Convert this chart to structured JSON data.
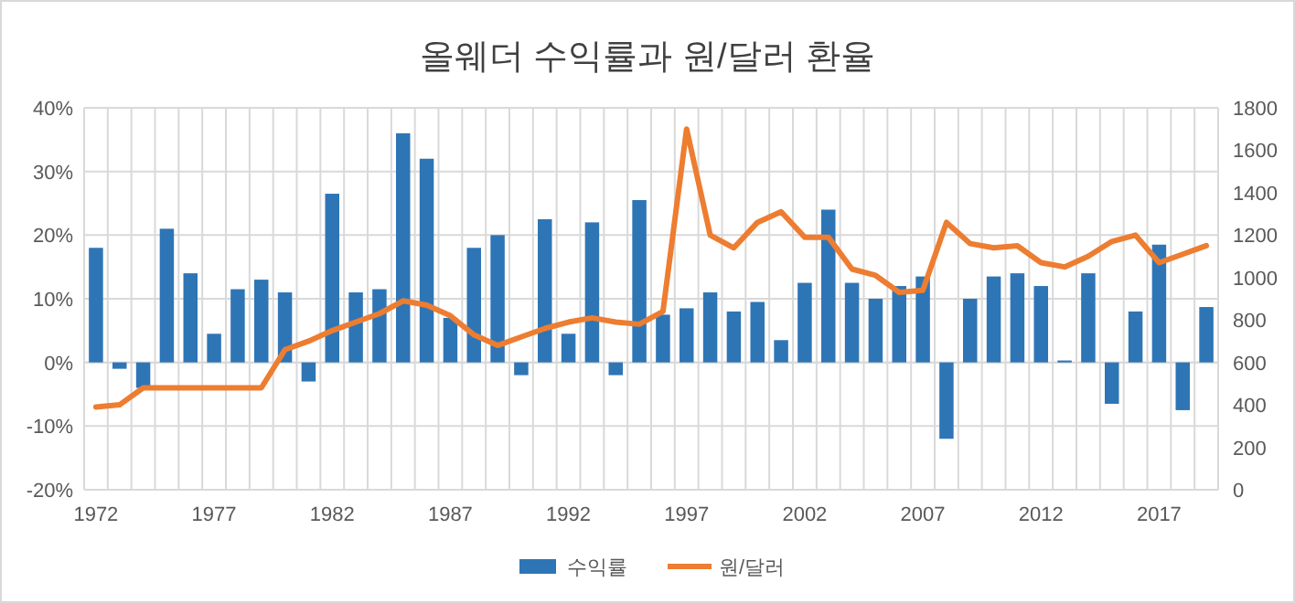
{
  "chart_data": {
    "type": "bar",
    "title": "올웨더 수익률과 원/달러 환율",
    "categories": [
      "1972",
      null,
      null,
      null,
      null,
      "1977",
      null,
      null,
      null,
      null,
      "1982",
      null,
      null,
      null,
      null,
      "1987",
      null,
      null,
      null,
      null,
      "1992",
      null,
      null,
      null,
      null,
      "1997",
      null,
      null,
      null,
      null,
      "2002",
      null,
      null,
      null,
      null,
      "2007",
      null,
      null,
      null,
      null,
      "2012",
      null,
      null,
      null,
      null,
      "2017",
      null,
      null
    ],
    "series": [
      {
        "name": "수익률",
        "color": "#2e75b6",
        "values": [
          18,
          -1,
          -4,
          21,
          14,
          4.5,
          11.5,
          13,
          11,
          -3,
          26.5,
          11,
          11.5,
          36,
          32,
          7,
          18,
          20,
          -2,
          22.5,
          4.5,
          22,
          -2,
          25.5,
          7.5,
          8.5,
          11,
          8,
          9.5,
          3.5,
          12.5,
          24,
          12.5,
          10,
          12,
          13.5,
          -12,
          10,
          13.5,
          14,
          12,
          0.3,
          14,
          -6.5,
          8,
          18.5,
          -7.5,
          8.7
        ]
      },
      {
        "name": "원/달러",
        "type": "line",
        "axis": "y2",
        "color": "#ed7d31",
        "values": [
          390,
          400,
          480,
          480,
          480,
          480,
          480,
          480,
          660,
          700,
          750,
          790,
          830,
          890,
          870,
          820,
          730,
          680,
          720,
          760,
          790,
          810,
          790,
          780,
          840,
          1700,
          1200,
          1140,
          1260,
          1310,
          1190,
          1190,
          1040,
          1010,
          930,
          940,
          1260,
          1160,
          1140,
          1150,
          1070,
          1050,
          1100,
          1170,
          1200,
          1070,
          1110,
          1150
        ]
      }
    ],
    "ylim": [
      -20,
      40
    ],
    "yticks": [
      {
        "value": -20,
        "label": "-20%"
      },
      {
        "value": -10,
        "label": "-10%"
      },
      {
        "value": 0,
        "label": "0%"
      },
      {
        "value": 10,
        "label": "10%"
      },
      {
        "value": 20,
        "label": "20%"
      },
      {
        "value": 30,
        "label": "30%"
      },
      {
        "value": 40,
        "label": "40%"
      }
    ],
    "y2lim": [
      0,
      1800
    ],
    "y2ticks": [
      0,
      200,
      400,
      600,
      800,
      1000,
      1200,
      1400,
      1600,
      1800
    ],
    "grid": true,
    "legend": "bottom"
  }
}
